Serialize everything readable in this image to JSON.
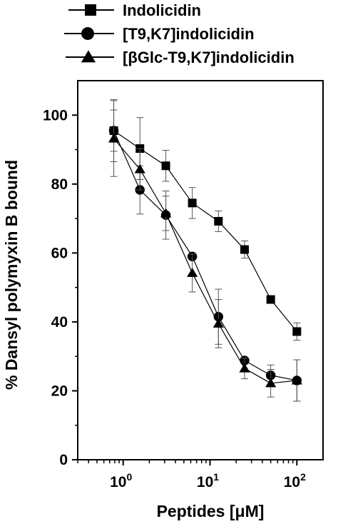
{
  "chart_data": {
    "type": "line",
    "xlabel": "Peptides [μM]",
    "ylabel": "% Dansyl polymyxin B bound",
    "x_scale": "log",
    "xlim": [
      0.3,
      200
    ],
    "ylim": [
      0,
      110
    ],
    "y_ticks": [
      0,
      20,
      40,
      60,
      80,
      100
    ],
    "x_ticks": [
      {
        "value": 1,
        "base": "10",
        "exp": "0"
      },
      {
        "value": 10,
        "base": "10",
        "exp": "1"
      },
      {
        "value": 100,
        "base": "10",
        "exp": "2"
      }
    ],
    "grid": false,
    "legend_position": "top",
    "series": [
      {
        "name": "Indolicidin",
        "marker": "square",
        "x": [
          0.78,
          1.56,
          3.1,
          6.25,
          12.5,
          25,
          50,
          100
        ],
        "y": [
          95.5,
          90.3,
          85.3,
          74.5,
          69.2,
          61,
          46.5,
          37.2
        ],
        "err": [
          9,
          9,
          4.5,
          4.5,
          3,
          2.5,
          0,
          2.5
        ]
      },
      {
        "name": "[T9,K7]indolicidin",
        "marker": "circle",
        "x": [
          0.78,
          1.56,
          3.1,
          6.25,
          12.5,
          25,
          50,
          100
        ],
        "y": [
          95.5,
          78.3,
          71,
          59,
          41.5,
          28.8,
          24.5,
          23
        ],
        "err": [
          6,
          7,
          7,
          0,
          8,
          0,
          3,
          6
        ]
      },
      {
        "name": "[βGlc-T9,K7]indolicidin",
        "marker": "triangle",
        "x": [
          0.78,
          1.56,
          3.1,
          6.25,
          12.5,
          25,
          50,
          100
        ],
        "y": [
          93.2,
          84.3,
          71.5,
          54.2,
          39.5,
          26.5,
          22.2,
          23
        ],
        "err": [
          11,
          6,
          5,
          5.5,
          7,
          3,
          4,
          6
        ]
      }
    ]
  }
}
